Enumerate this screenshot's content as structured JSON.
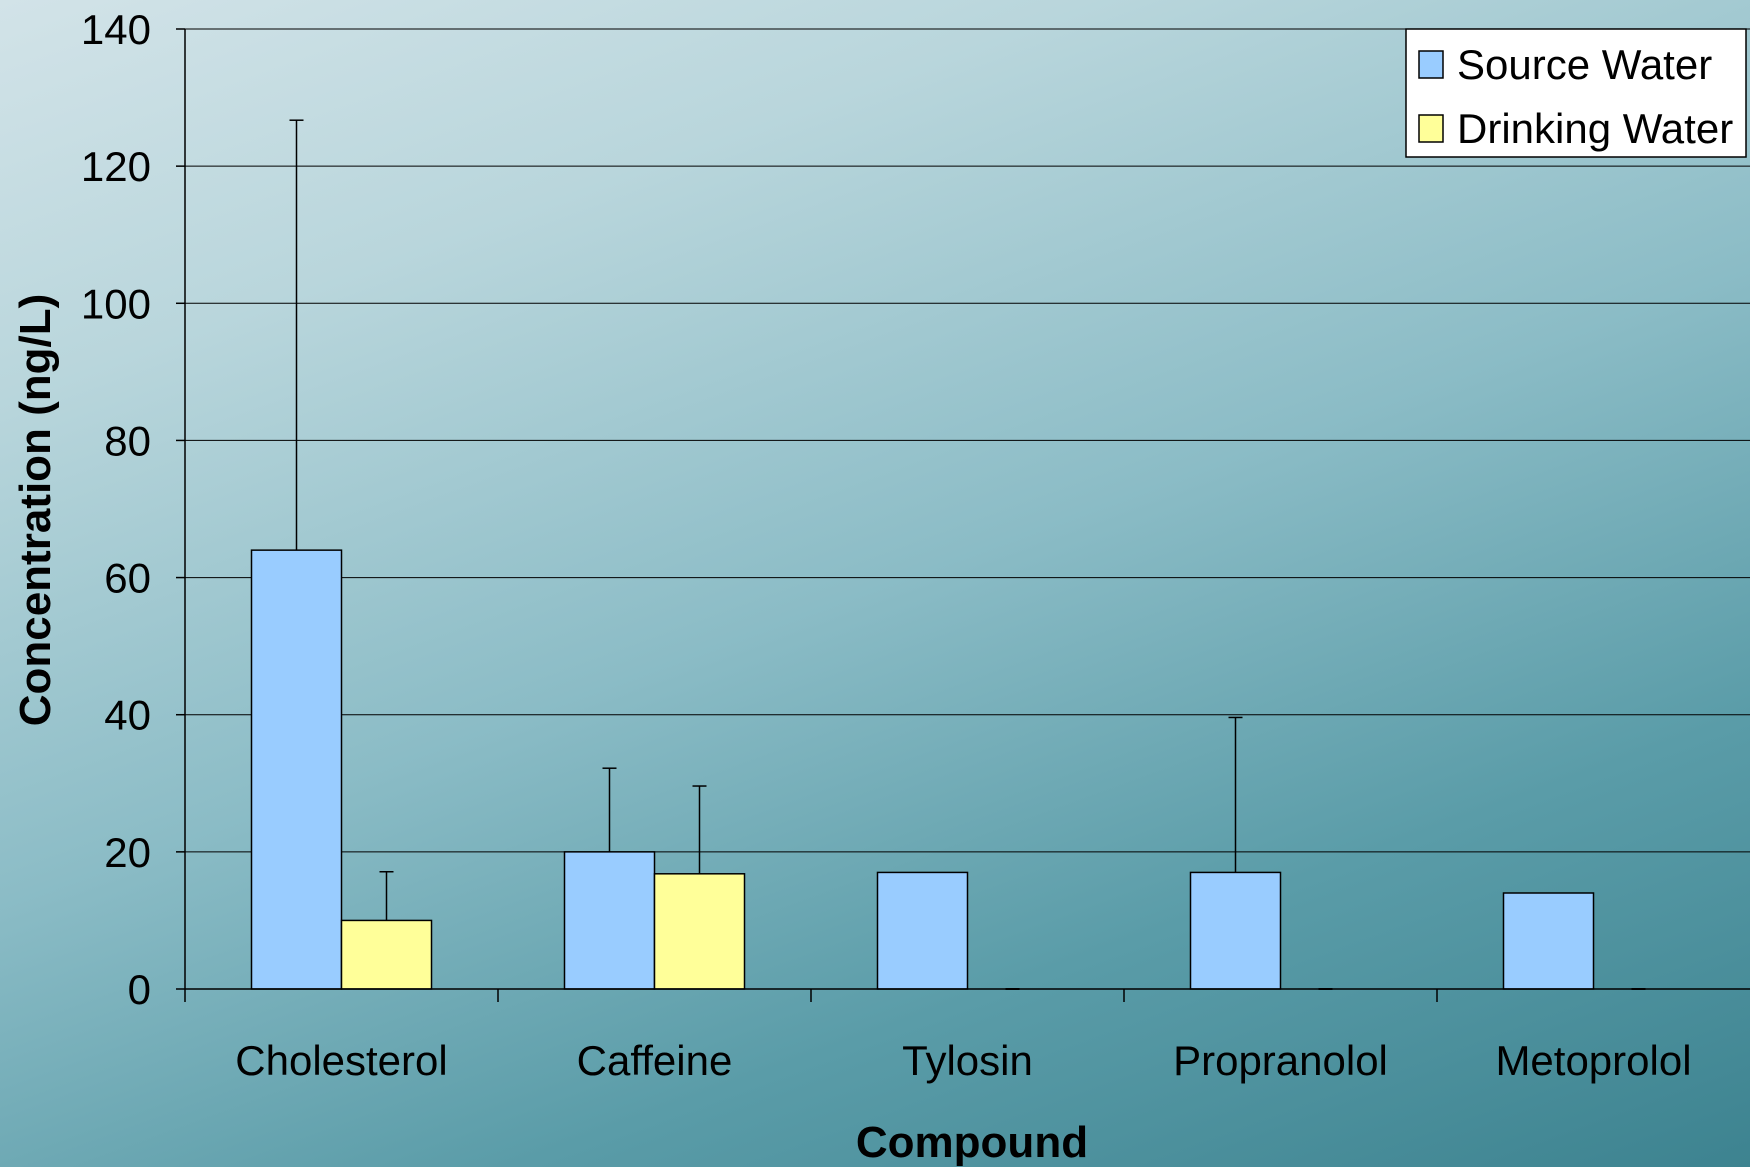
{
  "chart_data": {
    "type": "bar",
    "title": "",
    "xlabel": "Compound",
    "ylabel": "Concentration (ng/L)",
    "ylim": [
      0,
      140
    ],
    "yticks": [
      0,
      20,
      40,
      60,
      80,
      100,
      120,
      140
    ],
    "grid": true,
    "legend_position": "top-right",
    "categories": [
      "Cholesterol",
      "Caffeine",
      "Tylosin",
      "Propranolol",
      "Metoprolol"
    ],
    "series": [
      {
        "name": "Source Water",
        "color": "#99ccff",
        "values": [
          64,
          20,
          17,
          17,
          14
        ],
        "error_plus": [
          62.7,
          12.2,
          0,
          22.6,
          0
        ]
      },
      {
        "name": "Drinking Water",
        "color": "#ffff99",
        "values": [
          10,
          16.8,
          0,
          0,
          0
        ],
        "error_plus": [
          7.1,
          12.8,
          0,
          0,
          0
        ]
      }
    ]
  }
}
